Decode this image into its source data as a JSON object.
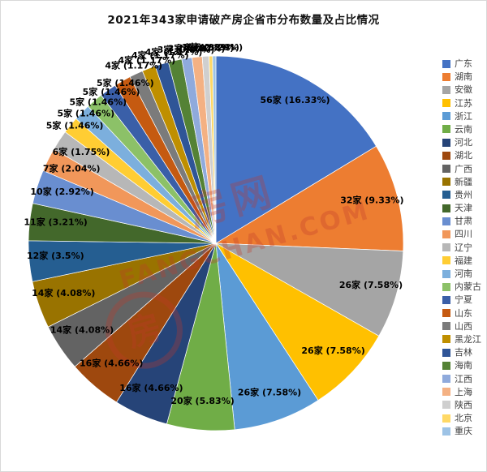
{
  "title": "2021年343家申请破产房企省市分布数量及占比情况",
  "watermark": {
    "brand_text": "房网",
    "domain_text": "FANGCHAN.COM",
    "stamp_char": "房",
    "color": "#c0392b"
  },
  "chart_data": {
    "type": "pie",
    "title": "2021年343家申请破产房企省市分布数量及占比情况",
    "total": 343,
    "unit": "家",
    "legend_position": "right",
    "grid": false,
    "categories": [
      "广东",
      "湖南",
      "安徽",
      "江苏",
      "浙江",
      "云南",
      "河北",
      "湖北",
      "广西",
      "新疆",
      "贵州",
      "天津",
      "甘肃",
      "四川",
      "辽宁",
      "福建",
      "河南",
      "内蒙古",
      "宁夏",
      "山东",
      "山西",
      "黑龙江",
      "吉林",
      "海南",
      "江西",
      "上海",
      "陕西",
      "北京",
      "重庆"
    ],
    "values": [
      56,
      32,
      26,
      26,
      26,
      20,
      16,
      16,
      14,
      14,
      12,
      11,
      10,
      7,
      6,
      5,
      5,
      5,
      5,
      5,
      4,
      4,
      4,
      4,
      3,
      3,
      2,
      1,
      1
    ],
    "percents": [
      16.33,
      9.33,
      7.58,
      7.58,
      7.58,
      5.83,
      4.66,
      4.66,
      4.08,
      4.08,
      3.5,
      3.21,
      2.92,
      2.04,
      1.75,
      1.46,
      1.46,
      1.46,
      1.46,
      1.46,
      1.17,
      1.17,
      1.17,
      1.17,
      0.87,
      0.87,
      0.58,
      0.29,
      0.29
    ],
    "labels": [
      "56家 (16.33%)",
      "32家 (9.33%)",
      "26家 (7.58%)",
      "26家 (7.58%)",
      "26家 (7.58%)",
      "20家 (5.83%)",
      "16家 (4.66%)",
      "16家 (4.66%)",
      "14家 (4.08%)",
      "14家 (4.08%)",
      "12家 (3.5%)",
      "11家 (3.21%)",
      "10家 (2.92%)",
      "7家 (2.04%)",
      "6家 (1.75%)",
      "5家 (1.46%)",
      "5家 (1.46%)",
      "5家 (1.46%)",
      "5家 (1.46%)",
      "5家 (1.46%)",
      "4家 (1.17%)",
      "4家 (1.17%)",
      "4家 (1.17%)",
      "4家 (1.17%)",
      "3家 (0.87%)",
      "3家 (0.87%)",
      "2家 (0.58%)",
      "1家 (0.29%)",
      "1家 (0.29%)"
    ],
    "colors": [
      "#4472C4",
      "#ED7D31",
      "#A5A5A5",
      "#FFC000",
      "#5B9BD5",
      "#70AD47",
      "#264478",
      "#9E480E",
      "#636363",
      "#997300",
      "#255E91",
      "#43682B",
      "#698ED0",
      "#F1975A",
      "#B7B7B7",
      "#FFCD33",
      "#7CAFDD",
      "#8CC168",
      "#3A5FA8",
      "#C55A11",
      "#7B7B7B",
      "#BF8F00",
      "#2F5597",
      "#548235",
      "#8FAADC",
      "#F4B183",
      "#CFCFCF",
      "#FFD966",
      "#9DC3E6"
    ]
  }
}
